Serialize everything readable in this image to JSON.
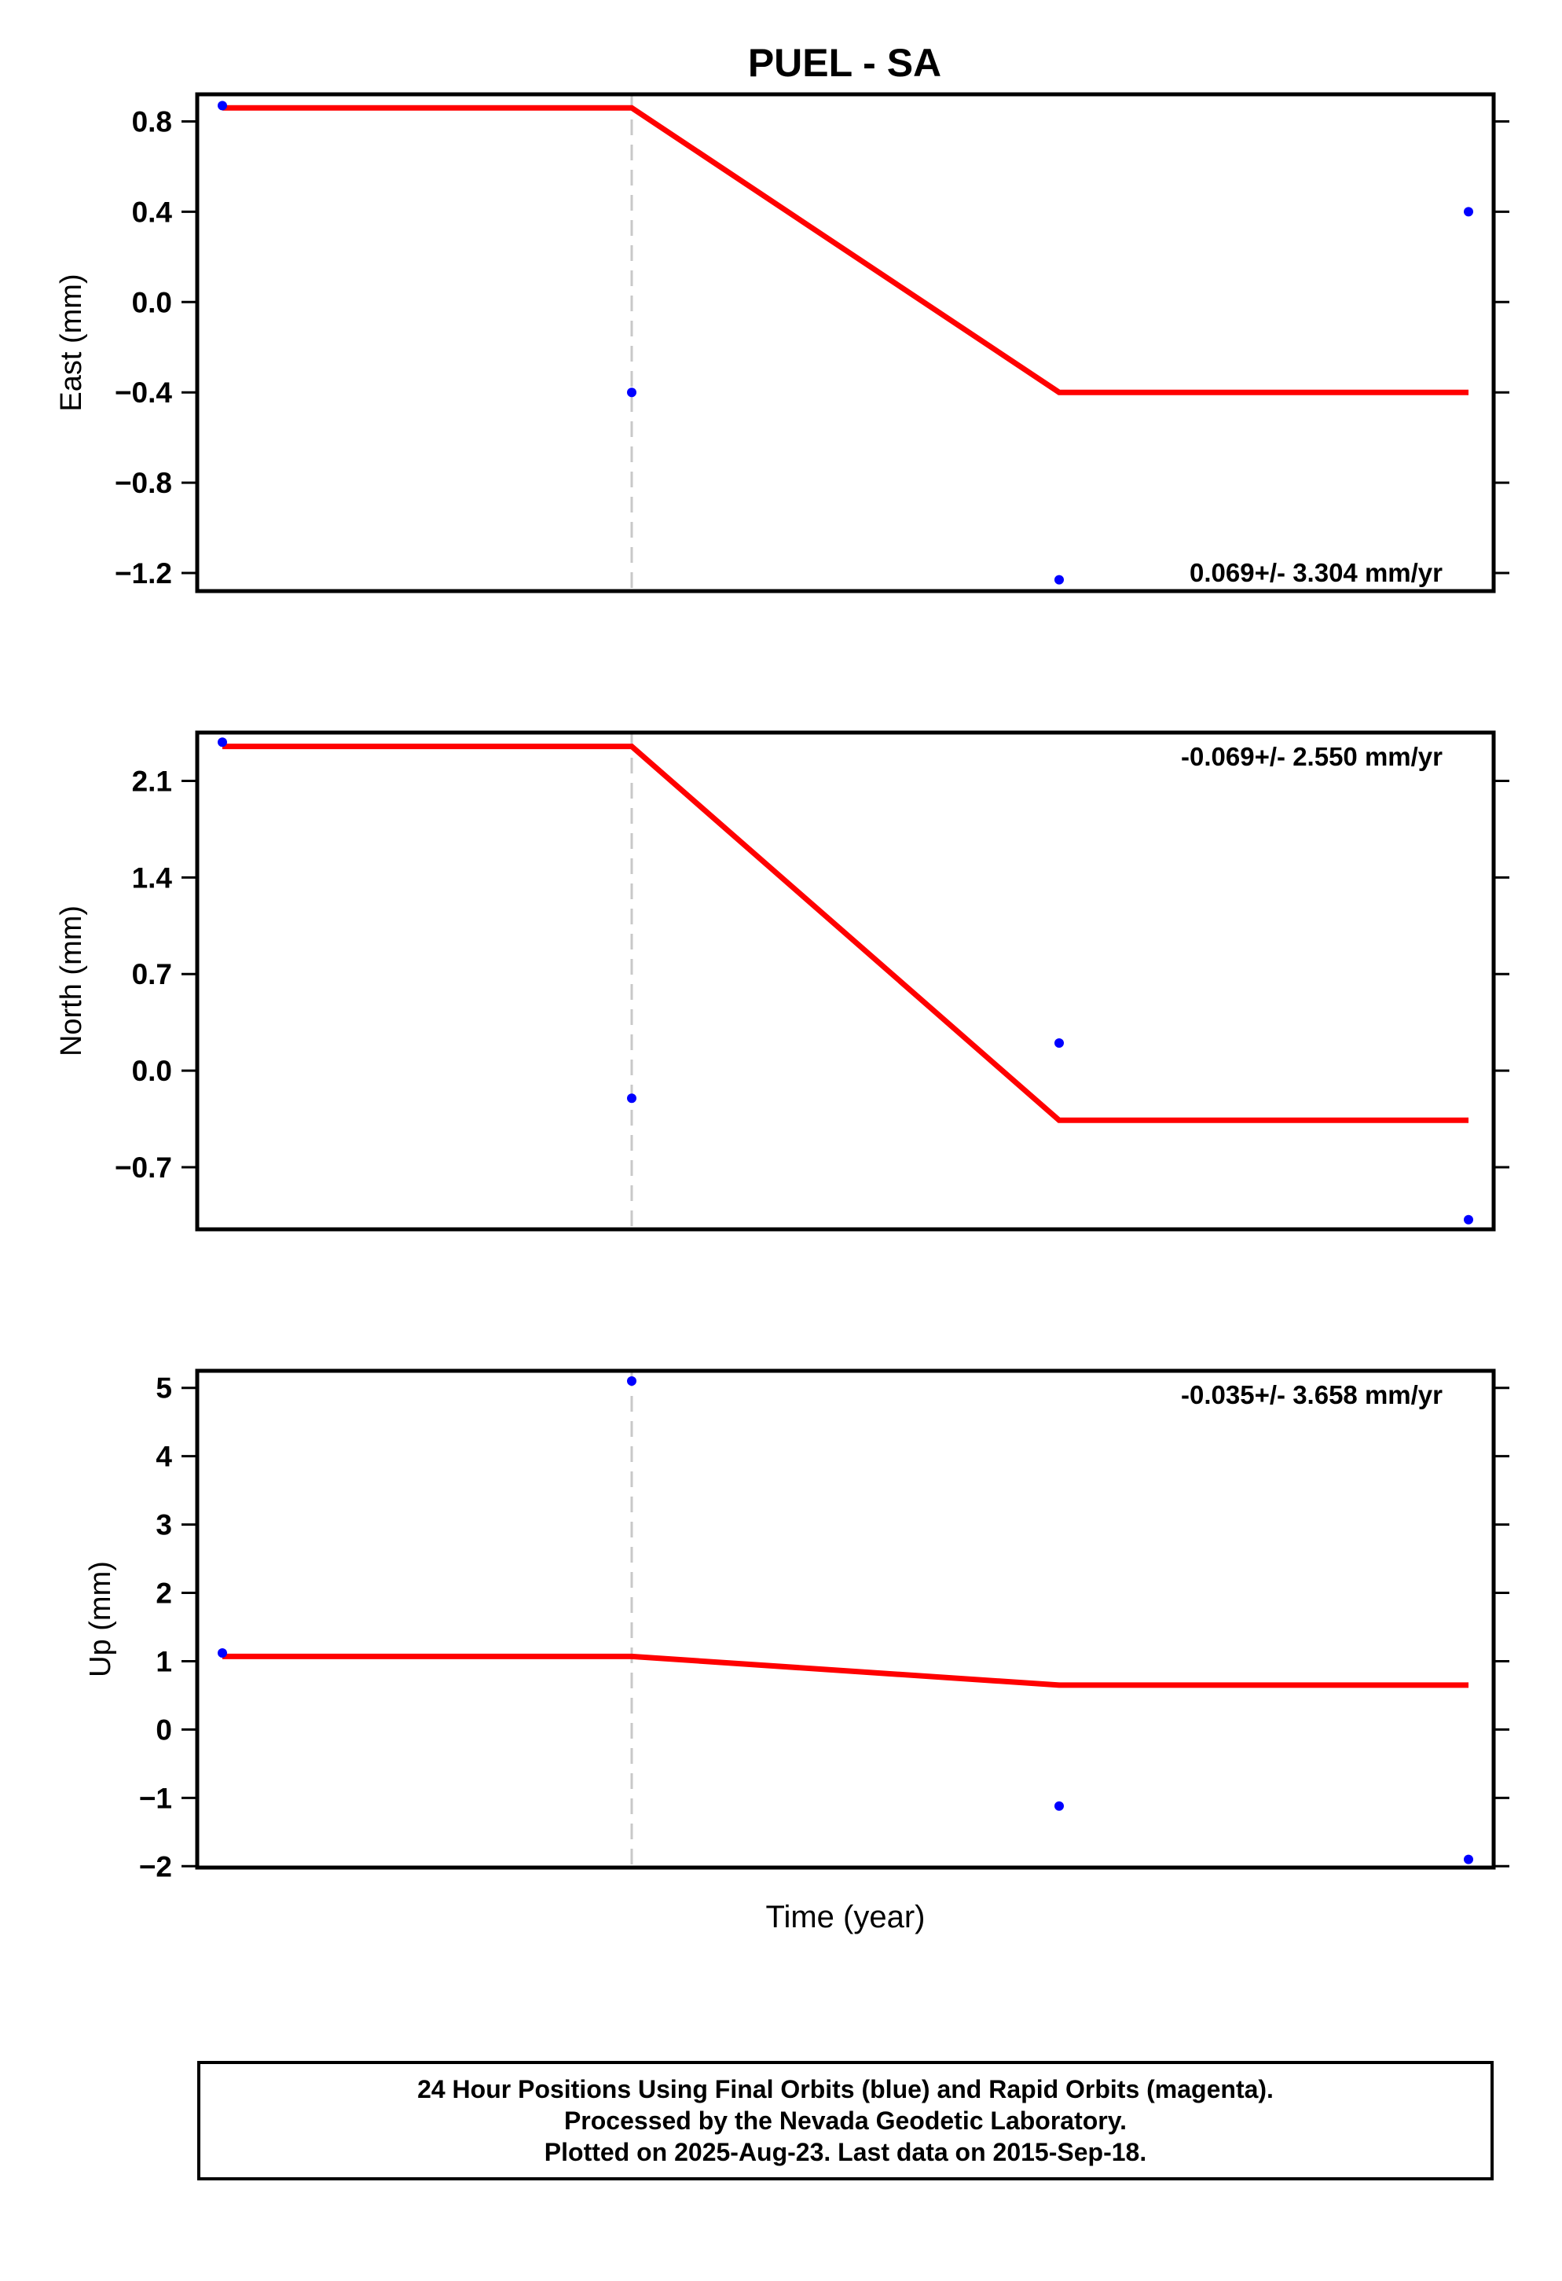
{
  "title": "PUEL - SA",
  "chart_data": [
    {
      "type": "line",
      "ylabel": "East (mm)",
      "ylim": [
        -1.28,
        0.92
      ],
      "yticks": [
        -1.2,
        -0.8,
        -0.4,
        0.0,
        0.4,
        0.8
      ],
      "ytick_labels": [
        "−1.2",
        "−0.8",
        "−0.4",
        "0.0",
        "0.4",
        "0.8"
      ],
      "rate_label": "0.069+/- 3.304 mm/yr",
      "rate_position": "bottom-right",
      "series": [
        {
          "type": "scatter",
          "color": "#0000ff",
          "y": [
            0.87,
            -0.4,
            -1.23,
            0.4
          ]
        },
        {
          "type": "line",
          "color": "#ff0000",
          "y": [
            0.86,
            0.86,
            -0.4,
            -0.4
          ]
        }
      ]
    },
    {
      "type": "line",
      "ylabel": "North (mm)",
      "ylim": [
        -1.15,
        2.45
      ],
      "yticks": [
        -0.7,
        0.0,
        0.7,
        1.4,
        2.1
      ],
      "ytick_labels": [
        "−0.7",
        "0.0",
        "0.7",
        "1.4",
        "2.1"
      ],
      "rate_label": "-0.069+/- 2.550 mm/yr",
      "rate_position": "top-right",
      "series": [
        {
          "type": "scatter",
          "color": "#0000ff",
          "y": [
            2.38,
            -0.2,
            0.2,
            -1.08
          ]
        },
        {
          "type": "line",
          "color": "#ff0000",
          "y": [
            2.35,
            2.35,
            -0.36,
            -0.36
          ]
        }
      ]
    },
    {
      "type": "line",
      "ylabel": "Up (mm)",
      "xlabel": "Time (year)",
      "ylim": [
        -2.02,
        5.25
      ],
      "yticks": [
        -2,
        -1,
        0,
        1,
        2,
        3,
        4,
        5
      ],
      "ytick_labels": [
        "−2",
        "−1",
        "0",
        "1",
        "2",
        "3",
        "4",
        "5"
      ],
      "rate_label": "-0.035+/- 3.658 mm/yr",
      "rate_position": "top-right",
      "series": [
        {
          "type": "scatter",
          "color": "#0000ff",
          "y": [
            1.12,
            5.1,
            -1.12,
            -1.9
          ]
        },
        {
          "type": "line",
          "color": "#ff0000",
          "y": [
            1.07,
            1.07,
            0.65,
            0.65
          ]
        }
      ]
    }
  ],
  "footer": {
    "line1": "24 Hour Positions Using Final Orbits (blue) and Rapid Orbits (magenta).",
    "line2": "Processed by the Nevada Geodetic Laboratory.",
    "line3": "Plotted on 2025-Aug-23. Last data on 2015-Sep-18."
  },
  "colors": {
    "data_points": "#0000ff",
    "model_line": "#ff0000",
    "event_line": "#c8c8c8",
    "frame": "#000000"
  }
}
